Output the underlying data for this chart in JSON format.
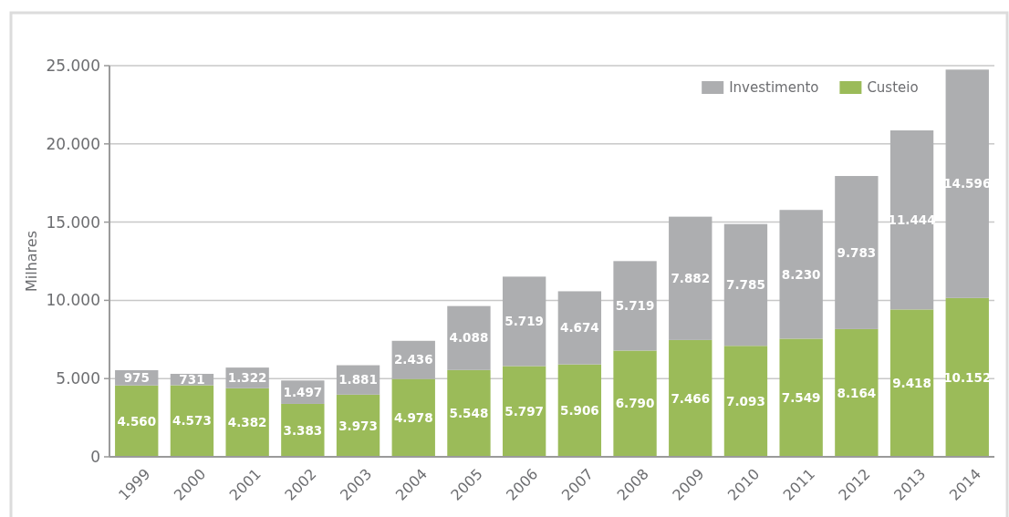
{
  "chart_data": {
    "type": "bar",
    "stacked": true,
    "ylabel": "Milhares",
    "categories": [
      "1999",
      "2000",
      "2001",
      "2002",
      "2003",
      "2004",
      "2005",
      "2006",
      "2007",
      "2008",
      "2009",
      "2010",
      "2011",
      "2012",
      "2013",
      "2014"
    ],
    "series": [
      {
        "name": "Custeio",
        "color": "#9bbb59",
        "values": [
          4560,
          4573,
          4382,
          3383,
          3973,
          4978,
          5548,
          5797,
          5906,
          6790,
          7466,
          7093,
          7549,
          8164,
          9418,
          10152
        ],
        "value_labels": [
          "4.560",
          "4.573",
          "4.382",
          "3.383",
          "3.973",
          "4.978",
          "5.548",
          "5.797",
          "5.906",
          "6.790",
          "7.466",
          "7.093",
          "7.549",
          "8.164",
          "9.418",
          "10.152"
        ]
      },
      {
        "name": "Investimento",
        "color": "#adaeb0",
        "values": [
          975,
          731,
          1322,
          1497,
          1881,
          2436,
          4088,
          5719,
          4674,
          5719,
          7882,
          7785,
          8230,
          9783,
          11444,
          14596
        ],
        "value_labels": [
          "975",
          "731",
          "1.322",
          "1.497",
          "1.881",
          "2.436",
          "4.088",
          "5.719",
          "4.674",
          "5.719",
          "7.882",
          "7.785",
          "8.230",
          "9.783",
          "11.444",
          "14.596"
        ]
      }
    ],
    "ylim": [
      0,
      25000
    ],
    "yticks": [
      {
        "value": 0,
        "label": "0"
      },
      {
        "value": 5000,
        "label": "5.000"
      },
      {
        "value": 10000,
        "label": "10.000"
      },
      {
        "value": 15000,
        "label": "15.000"
      },
      {
        "value": 20000,
        "label": "20.000"
      },
      {
        "value": 25000,
        "label": "25.000"
      }
    ],
    "grid": "y",
    "legend": "top right"
  }
}
